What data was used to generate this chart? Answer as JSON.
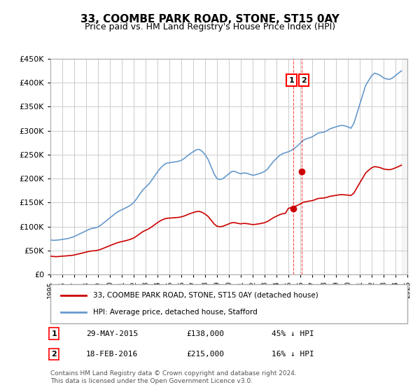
{
  "title": "33, COOMBE PARK ROAD, STONE, ST15 0AY",
  "subtitle": "Price paid vs. HM Land Registry's House Price Index (HPI)",
  "ylabel_ticks": [
    "£0",
    "£50K",
    "£100K",
    "£150K",
    "£200K",
    "£250K",
    "£300K",
    "£350K",
    "£400K",
    "£450K"
  ],
  "ylim": [
    0,
    450000
  ],
  "xlim": [
    1995,
    2025
  ],
  "transaction1": {
    "date": "2015-05-29",
    "price": 138000,
    "label": "1",
    "x": 2015.41
  },
  "transaction2": {
    "date": "2016-02-18",
    "price": 215000,
    "label": "2",
    "x": 2016.13
  },
  "legend_line1": "33, COOMBE PARK ROAD, STONE, ST15 0AY (detached house)",
  "legend_line2": "HPI: Average price, detached house, Stafford",
  "annotation1": "1    29-MAY-2015         £138,000         45% ↓ HPI",
  "annotation2": "2    18-FEB-2016         £215,000         16% ↓ HPI",
  "footnote": "Contains HM Land Registry data © Crown copyright and database right 2024.\nThis data is licensed under the Open Government Licence v3.0.",
  "hpi_color": "#6699cc",
  "property_color": "#cc0000",
  "background_color": "#ffffff",
  "grid_color": "#cccccc",
  "hpi_data": {
    "x": [
      1995.0,
      1995.25,
      1995.5,
      1995.75,
      1996.0,
      1996.25,
      1996.5,
      1996.75,
      1997.0,
      1997.25,
      1997.5,
      1997.75,
      1998.0,
      1998.25,
      1998.5,
      1998.75,
      1999.0,
      1999.25,
      1999.5,
      1999.75,
      2000.0,
      2000.25,
      2000.5,
      2000.75,
      2001.0,
      2001.25,
      2001.5,
      2001.75,
      2002.0,
      2002.25,
      2002.5,
      2002.75,
      2003.0,
      2003.25,
      2003.5,
      2003.75,
      2004.0,
      2004.25,
      2004.5,
      2004.75,
      2005.0,
      2005.25,
      2005.5,
      2005.75,
      2006.0,
      2006.25,
      2006.5,
      2006.75,
      2007.0,
      2007.25,
      2007.5,
      2007.75,
      2008.0,
      2008.25,
      2008.5,
      2008.75,
      2009.0,
      2009.25,
      2009.5,
      2009.75,
      2010.0,
      2010.25,
      2010.5,
      2010.75,
      2011.0,
      2011.25,
      2011.5,
      2011.75,
      2012.0,
      2012.25,
      2012.5,
      2012.75,
      2013.0,
      2013.25,
      2013.5,
      2013.75,
      2014.0,
      2014.25,
      2014.5,
      2014.75,
      2015.0,
      2015.25,
      2015.5,
      2015.75,
      2016.0,
      2016.25,
      2016.5,
      2016.75,
      2017.0,
      2017.25,
      2017.5,
      2017.75,
      2018.0,
      2018.25,
      2018.5,
      2018.75,
      2019.0,
      2019.25,
      2019.5,
      2019.75,
      2020.0,
      2020.25,
      2020.5,
      2020.75,
      2021.0,
      2021.25,
      2021.5,
      2021.75,
      2022.0,
      2022.25,
      2022.5,
      2022.75,
      2023.0,
      2023.25,
      2023.5,
      2023.75,
      2024.0,
      2024.25,
      2024.5
    ],
    "y": [
      72000,
      71000,
      71500,
      72000,
      73000,
      74000,
      75000,
      77000,
      79000,
      82000,
      85000,
      88000,
      91000,
      94000,
      96000,
      97000,
      99000,
      103000,
      108000,
      113000,
      118000,
      123000,
      128000,
      132000,
      135000,
      138000,
      141000,
      145000,
      150000,
      158000,
      167000,
      176000,
      182000,
      188000,
      196000,
      205000,
      214000,
      222000,
      228000,
      232000,
      233000,
      234000,
      235000,
      236000,
      238000,
      242000,
      247000,
      252000,
      256000,
      260000,
      261000,
      257000,
      250000,
      240000,
      225000,
      210000,
      200000,
      198000,
      200000,
      205000,
      210000,
      215000,
      215000,
      212000,
      210000,
      212000,
      211000,
      209000,
      207000,
      208000,
      210000,
      212000,
      215000,
      220000,
      228000,
      236000,
      242000,
      248000,
      252000,
      254000,
      256000,
      259000,
      263000,
      268000,
      274000,
      280000,
      283000,
      285000,
      287000,
      291000,
      295000,
      296000,
      297000,
      300000,
      304000,
      306000,
      308000,
      310000,
      311000,
      310000,
      308000,
      305000,
      315000,
      335000,
      355000,
      375000,
      395000,
      405000,
      415000,
      420000,
      418000,
      415000,
      410000,
      408000,
      407000,
      410000,
      415000,
      420000,
      425000
    ]
  },
  "property_data": {
    "x": [
      1995.0,
      1995.25,
      1995.5,
      1995.75,
      1996.0,
      1996.25,
      1996.5,
      1996.75,
      1997.0,
      1997.25,
      1997.5,
      1997.75,
      1998.0,
      1998.25,
      1998.5,
      1998.75,
      1999.0,
      1999.25,
      1999.5,
      1999.75,
      2000.0,
      2000.25,
      2000.5,
      2000.75,
      2001.0,
      2001.25,
      2001.5,
      2001.75,
      2002.0,
      2002.25,
      2002.5,
      2002.75,
      2003.0,
      2003.25,
      2003.5,
      2003.75,
      2004.0,
      2004.25,
      2004.5,
      2004.75,
      2005.0,
      2005.25,
      2005.5,
      2005.75,
      2006.0,
      2006.25,
      2006.5,
      2006.75,
      2007.0,
      2007.25,
      2007.5,
      2007.75,
      2008.0,
      2008.25,
      2008.5,
      2008.75,
      2009.0,
      2009.25,
      2009.5,
      2009.75,
      2010.0,
      2010.25,
      2010.5,
      2010.75,
      2011.0,
      2011.25,
      2011.5,
      2011.75,
      2012.0,
      2012.25,
      2012.5,
      2012.75,
      2013.0,
      2013.25,
      2013.5,
      2013.75,
      2014.0,
      2014.25,
      2014.5,
      2014.75,
      2015.0,
      2015.25,
      2015.5,
      2015.75,
      2016.0,
      2016.25,
      2016.5,
      2016.75,
      2017.0,
      2017.25,
      2017.5,
      2017.75,
      2018.0,
      2018.25,
      2018.5,
      2018.75,
      2019.0,
      2019.25,
      2019.5,
      2019.75,
      2020.0,
      2020.25,
      2020.5,
      2020.75,
      2021.0,
      2021.25,
      2021.5,
      2021.75,
      2022.0,
      2022.25,
      2022.5,
      2022.75,
      2023.0,
      2023.25,
      2023.5,
      2023.75,
      2024.0,
      2024.25,
      2024.5
    ],
    "y": [
      38000,
      37500,
      37000,
      37500,
      38000,
      38500,
      39000,
      39500,
      40500,
      42000,
      43500,
      45000,
      46500,
      48000,
      49000,
      49500,
      50500,
      52500,
      55000,
      57500,
      60000,
      62500,
      65000,
      67000,
      68500,
      70000,
      71500,
      73500,
      76000,
      80000,
      84500,
      89000,
      92000,
      95000,
      99000,
      103500,
      108000,
      112000,
      115000,
      117000,
      117500,
      118000,
      118500,
      119000,
      120000,
      122000,
      124500,
      127000,
      129000,
      131000,
      131500,
      129500,
      126000,
      121000,
      113500,
      105500,
      100500,
      99500,
      100500,
      103000,
      105500,
      108000,
      108000,
      106500,
      105500,
      106500,
      106000,
      105000,
      104000,
      104500,
      105500,
      106500,
      108000,
      110500,
      114500,
      118500,
      121500,
      124500,
      126500,
      127500,
      138000,
      139500,
      141500,
      144000,
      147000,
      150500,
      152000,
      153000,
      154000,
      156000,
      158500,
      159000,
      159500,
      161000,
      163000,
      164000,
      165000,
      166000,
      166500,
      166000,
      165500,
      164500,
      169500,
      180500,
      191000,
      201500,
      212000,
      217500,
      222500,
      225000,
      224000,
      222500,
      220000,
      219000,
      218500,
      220000,
      222500,
      225000,
      228000
    ]
  }
}
